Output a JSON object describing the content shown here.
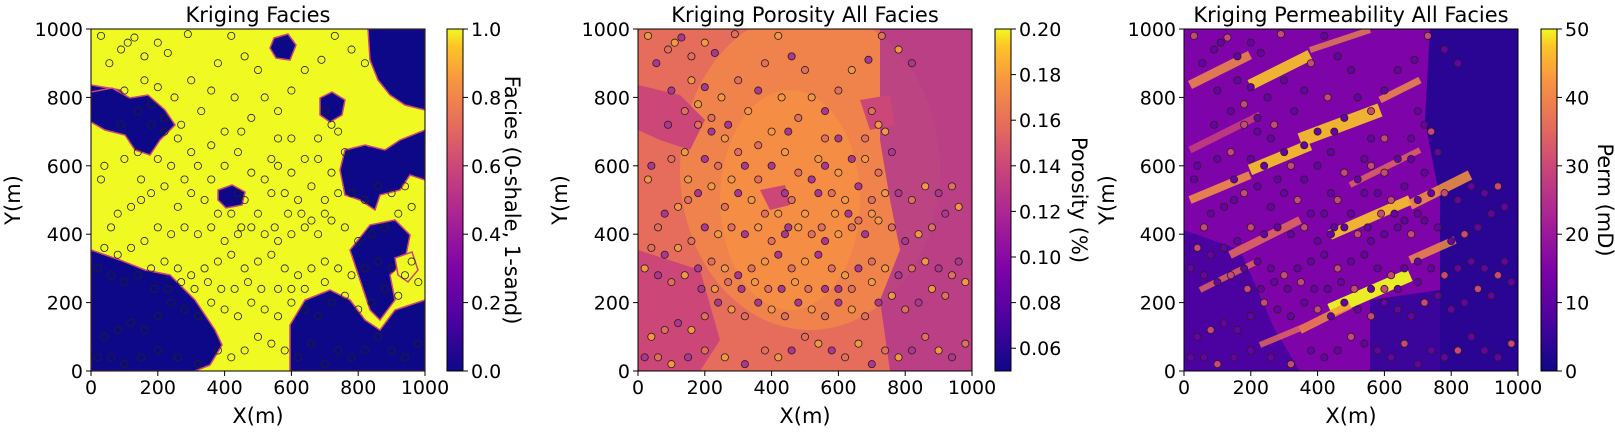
{
  "chart_data": [
    {
      "type": "heatmap",
      "title": "Kriging Facies",
      "xlabel": "X(m)",
      "ylabel": "Y(m)",
      "xlim": [
        0,
        1000
      ],
      "ylim": [
        0,
        1000
      ],
      "x_ticks": [
        "0",
        "200",
        "400",
        "600",
        "800",
        "1000"
      ],
      "y_ticks": [
        "0",
        "200",
        "400",
        "600",
        "800",
        "1000"
      ],
      "colorbar": {
        "label": "Facies (0-shale, 1-sand)",
        "range": [
          0.0,
          1.0
        ],
        "ticks": [
          "0.0",
          "0.2",
          "0.4",
          "0.6",
          "0.8",
          "1.0"
        ],
        "colormap": "plasma"
      }
    },
    {
      "type": "heatmap",
      "title": "Kriging Porosity All Facies",
      "xlabel": "X(m)",
      "ylabel": "Y(m)",
      "xlim": [
        0,
        1000
      ],
      "ylim": [
        0,
        1000
      ],
      "x_ticks": [
        "0",
        "200",
        "400",
        "600",
        "800",
        "1000"
      ],
      "y_ticks": [
        "0",
        "200",
        "400",
        "600",
        "800",
        "1000"
      ],
      "colorbar": {
        "label": "Porosity (%)",
        "range": [
          0.05,
          0.2
        ],
        "ticks": [
          "0.06",
          "0.08",
          "0.10",
          "0.12",
          "0.14",
          "0.16",
          "0.18",
          "0.20"
        ],
        "colormap": "plasma"
      }
    },
    {
      "type": "heatmap",
      "title": "Kriging Permeability All Facies",
      "xlabel": "X(m)",
      "ylabel": "Y(m)",
      "xlim": [
        0,
        1000
      ],
      "ylim": [
        0,
        1000
      ],
      "x_ticks": [
        "0",
        "200",
        "400",
        "600",
        "800",
        "1000"
      ],
      "y_ticks": [
        "0",
        "200",
        "400",
        "600",
        "800",
        "1000"
      ],
      "colorbar": {
        "label": "Perm (mD)",
        "range": [
          0,
          50
        ],
        "ticks": [
          "0",
          "10",
          "20",
          "30",
          "40",
          "50"
        ],
        "colormap": "plasma"
      }
    }
  ],
  "well_locations": [
    [
      30,
      980
    ],
    [
      55,
      900
    ],
    [
      90,
      940
    ],
    [
      110,
      960
    ],
    [
      130,
      975
    ],
    [
      160,
      920
    ],
    [
      200,
      960
    ],
    [
      230,
      930
    ],
    [
      290,
      985
    ],
    [
      160,
      850
    ],
    [
      100,
      820
    ],
    [
      140,
      760
    ],
    [
      180,
      780
    ],
    [
      200,
      830
    ],
    [
      220,
      740
    ],
    [
      250,
      800
    ],
    [
      270,
      720
    ],
    [
      300,
      850
    ],
    [
      330,
      760
    ],
    [
      360,
      820
    ],
    [
      380,
      900
    ],
    [
      420,
      980
    ],
    [
      460,
      920
    ],
    [
      500,
      880
    ],
    [
      430,
      800
    ],
    [
      450,
      700
    ],
    [
      480,
      740
    ],
    [
      520,
      800
    ],
    [
      560,
      760
    ],
    [
      600,
      820
    ],
    [
      640,
      880
    ],
    [
      690,
      910
    ],
    [
      730,
      980
    ],
    [
      780,
      940
    ],
    [
      820,
      900
    ],
    [
      700,
      760
    ],
    [
      740,
      700
    ],
    [
      760,
      640
    ],
    [
      720,
      580
    ],
    [
      680,
      620
    ],
    [
      600,
      680
    ],
    [
      560,
      680
    ],
    [
      540,
      620
    ],
    [
      520,
      560
    ],
    [
      480,
      580
    ],
    [
      440,
      640
    ],
    [
      400,
      600
    ],
    [
      360,
      560
    ],
    [
      340,
      500
    ],
    [
      300,
      520
    ],
    [
      260,
      480
    ],
    [
      220,
      540
    ],
    [
      180,
      520
    ],
    [
      150,
      500
    ],
    [
      120,
      480
    ],
    [
      80,
      460
    ],
    [
      60,
      420
    ],
    [
      30,
      560
    ],
    [
      40,
      600
    ],
    [
      100,
      620
    ],
    [
      140,
      640
    ],
    [
      200,
      620
    ],
    [
      240,
      600
    ],
    [
      280,
      560
    ],
    [
      320,
      600
    ],
    [
      360,
      660
    ],
    [
      400,
      700
    ],
    [
      440,
      520
    ],
    [
      460,
      500
    ],
    [
      500,
      460
    ],
    [
      540,
      520
    ],
    [
      580,
      520
    ],
    [
      620,
      500
    ],
    [
      660,
      540
    ],
    [
      700,
      500
    ],
    [
      740,
      520
    ],
    [
      780,
      520
    ],
    [
      820,
      500
    ],
    [
      860,
      540
    ],
    [
      900,
      520
    ],
    [
      940,
      540
    ],
    [
      960,
      480
    ],
    [
      920,
      460
    ],
    [
      880,
      420
    ],
    [
      840,
      400
    ],
    [
      800,
      380
    ],
    [
      760,
      420
    ],
    [
      720,
      440
    ],
    [
      680,
      400
    ],
    [
      640,
      420
    ],
    [
      600,
      400
    ],
    [
      560,
      380
    ],
    [
      520,
      400
    ],
    [
      480,
      420
    ],
    [
      440,
      400
    ],
    [
      400,
      380
    ],
    [
      360,
      420
    ],
    [
      320,
      400
    ],
    [
      280,
      420
    ],
    [
      240,
      400
    ],
    [
      200,
      420
    ],
    [
      160,
      380
    ],
    [
      120,
      360
    ],
    [
      80,
      340
    ],
    [
      40,
      360
    ],
    [
      20,
      300
    ],
    [
      60,
      280
    ],
    [
      100,
      260
    ],
    [
      140,
      280
    ],
    [
      180,
      300
    ],
    [
      220,
      320
    ],
    [
      260,
      300
    ],
    [
      300,
      280
    ],
    [
      340,
      300
    ],
    [
      380,
      320
    ],
    [
      420,
      340
    ],
    [
      460,
      300
    ],
    [
      500,
      320
    ],
    [
      540,
      340
    ],
    [
      580,
      300
    ],
    [
      620,
      280
    ],
    [
      660,
      300
    ],
    [
      700,
      320
    ],
    [
      740,
      300
    ],
    [
      780,
      280
    ],
    [
      820,
      300
    ],
    [
      860,
      320
    ],
    [
      900,
      300
    ],
    [
      940,
      280
    ],
    [
      980,
      260
    ],
    [
      960,
      320
    ],
    [
      920,
      220
    ],
    [
      880,
      240
    ],
    [
      840,
      200
    ],
    [
      800,
      180
    ],
    [
      760,
      220
    ],
    [
      720,
      200
    ],
    [
      680,
      160
    ],
    [
      640,
      180
    ],
    [
      600,
      200
    ],
    [
      560,
      160
    ],
    [
      520,
      180
    ],
    [
      480,
      200
    ],
    [
      440,
      160
    ],
    [
      400,
      180
    ],
    [
      360,
      200
    ],
    [
      320,
      160
    ],
    [
      280,
      180
    ],
    [
      240,
      200
    ],
    [
      200,
      160
    ],
    [
      160,
      120
    ],
    [
      120,
      140
    ],
    [
      80,
      120
    ],
    [
      40,
      100
    ],
    [
      20,
      40
    ],
    [
      60,
      40
    ],
    [
      100,
      20
    ],
    [
      150,
      40
    ],
    [
      200,
      60
    ],
    [
      260,
      40
    ],
    [
      320,
      20
    ],
    [
      380,
      60
    ],
    [
      420,
      40
    ],
    [
      460,
      60
    ],
    [
      500,
      100
    ],
    [
      540,
      80
    ],
    [
      580,
      60
    ],
    [
      620,
      40
    ],
    [
      660,
      80
    ],
    [
      700,
      20
    ],
    [
      740,
      60
    ],
    [
      780,
      40
    ],
    [
      820,
      60
    ],
    [
      860,
      100
    ],
    [
      900,
      60
    ],
    [
      940,
      40
    ],
    [
      980,
      80
    ],
    [
      420,
      460
    ],
    [
      450,
      420
    ],
    [
      380,
      460
    ],
    [
      600,
      580
    ],
    [
      640,
      620
    ],
    [
      680,
      680
    ],
    [
      720,
      720
    ],
    [
      560,
      600
    ],
    [
      300,
      640
    ],
    [
      260,
      680
    ],
    [
      220,
      700
    ],
    [
      180,
      720
    ],
    [
      150,
      560
    ],
    [
      90,
      720
    ],
    [
      550,
      420
    ],
    [
      590,
      460
    ],
    [
      630,
      460
    ],
    [
      660,
      440
    ],
    [
      700,
      460
    ],
    [
      600,
      240
    ],
    [
      640,
      240
    ],
    [
      700,
      260
    ],
    [
      560,
      240
    ],
    [
      510,
      240
    ],
    [
      470,
      260
    ],
    [
      430,
      240
    ],
    [
      390,
      240
    ],
    [
      350,
      260
    ],
    [
      310,
      240
    ],
    [
      270,
      260
    ],
    [
      230,
      240
    ],
    [
      190,
      240
    ]
  ]
}
